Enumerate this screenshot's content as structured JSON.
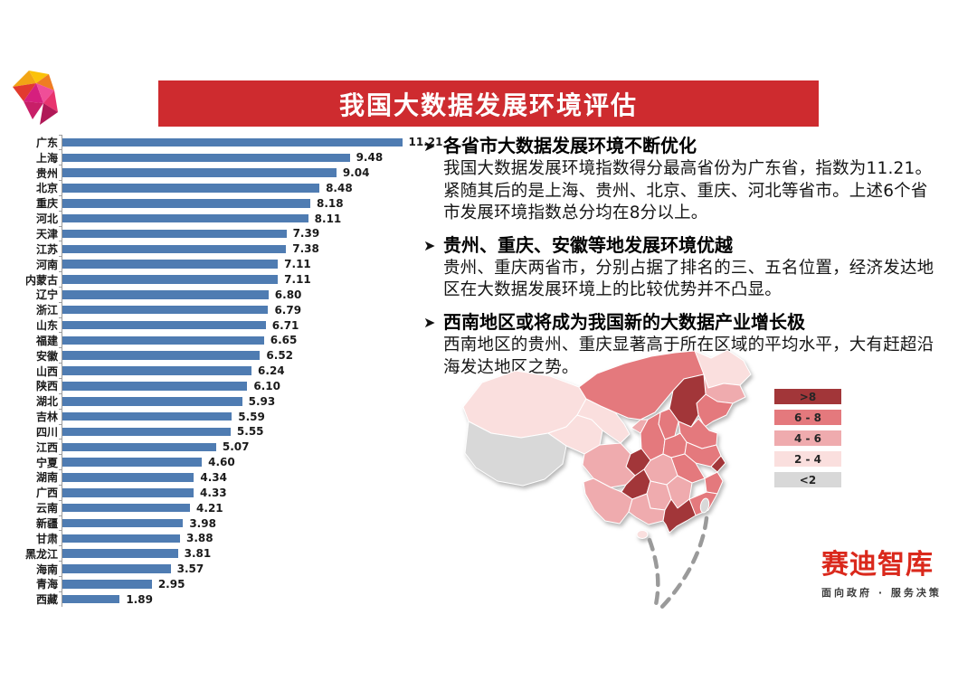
{
  "page": {
    "title": "我国大数据发展环境评估"
  },
  "colors": {
    "banner": "#ce2b2f",
    "bar": "#4f7cb2",
    "logo_red": "#da291c"
  },
  "chart_data": {
    "type": "bar",
    "orientation": "horizontal",
    "title": "",
    "xlabel": "",
    "ylabel": "",
    "xlim": [
      0,
      12
    ],
    "grid": false,
    "bar_color": "#4f7cb2",
    "categories": [
      "广东",
      "上海",
      "贵州",
      "北京",
      "重庆",
      "河北",
      "天津",
      "江苏",
      "河南",
      "内蒙古",
      "辽宁",
      "浙江",
      "山东",
      "福建",
      "安徽",
      "山西",
      "陕西",
      "湖北",
      "吉林",
      "四川",
      "江西",
      "宁夏",
      "湖南",
      "广西",
      "云南",
      "新疆",
      "甘肃",
      "黑龙江",
      "海南",
      "青海",
      "西藏"
    ],
    "values": [
      11.21,
      9.48,
      9.04,
      8.48,
      8.18,
      8.11,
      7.39,
      7.38,
      7.11,
      7.11,
      6.8,
      6.79,
      6.71,
      6.65,
      6.52,
      6.24,
      6.1,
      5.93,
      5.59,
      5.55,
      5.07,
      4.6,
      4.34,
      4.33,
      4.21,
      3.98,
      3.88,
      3.81,
      3.57,
      2.95,
      1.89
    ]
  },
  "bullets": [
    {
      "heading": "各省市大数据发展环境不断优化",
      "body": "我国大数据发展环境指数得分最高省份为广东省，指数为11.21。紧随其后的是上海、贵州、北京、重庆、河北等省市。上述6个省市发展环境指数总分均在8分以上。"
    },
    {
      "heading": "贵州、重庆、安徽等地发展环境优越",
      "body": "贵州、重庆两省市，分别占据了排名的三、五名位置，经济发达地区在大数据发展环境上的比较优势并不凸显。"
    },
    {
      "heading": "西南地区或将成为我国新的大数据产业增长极",
      "body": "西南地区的贵州、重庆显著高于所在区域的平均水平，大有赶超沿海发达地区之势。"
    }
  ],
  "map": {
    "legend": [
      {
        "label": ">8",
        "color": "#a23639"
      },
      {
        "label": "6 - 8",
        "color": "#e4797d"
      },
      {
        "label": "4 - 6",
        "color": "#efabae"
      },
      {
        "label": "2 - 4",
        "color": "#fadfde"
      },
      {
        "label": "<2",
        "color": "#d8d8d8"
      }
    ]
  },
  "brand": {
    "name": "赛迪智库",
    "tagline": "面向政府 · 服务决策"
  }
}
